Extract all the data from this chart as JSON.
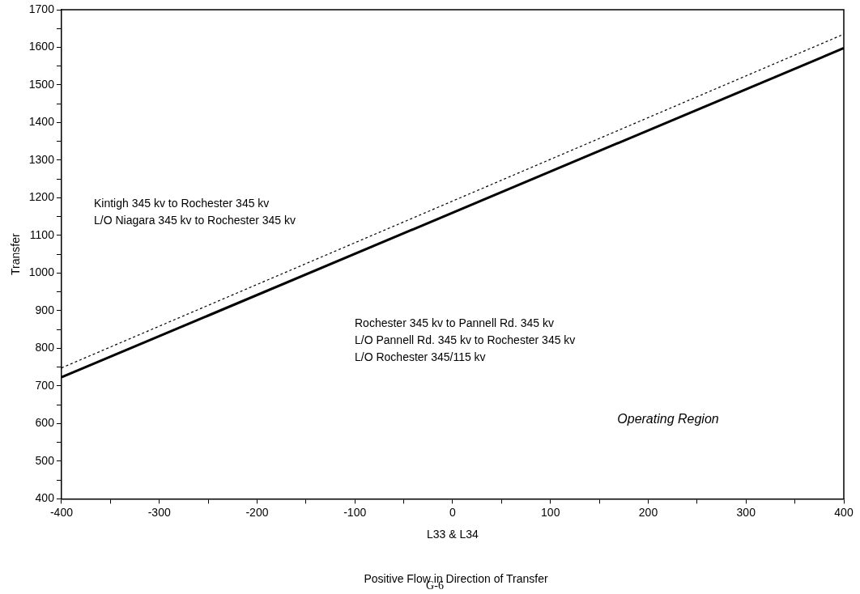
{
  "chart_data": {
    "type": "line",
    "xlabel": "L33 & L34",
    "ylabel": "Transfer",
    "x": [
      -400,
      400
    ],
    "series": [
      {
        "color": "#000000",
        "values": [
          723,
          1598
        ],
        "line_style": "solid"
      },
      {
        "color": "#000000",
        "values": [
          748,
          1635
        ],
        "line_style": "dashed"
      }
    ],
    "xlim": [
      -400,
      400
    ],
    "xticks": [
      -400,
      {
        "value": -350,
        "label": null
      },
      -300,
      {
        "value": -250,
        "label": null
      },
      -200,
      {
        "value": -150,
        "label": null
      },
      -100,
      {
        "value": -50,
        "label": null
      },
      0,
      {
        "value": 50,
        "label": null
      },
      100,
      {
        "value": 150,
        "label": null
      },
      200,
      {
        "value": 250,
        "label": null
      },
      300,
      {
        "value": 350,
        "label": null
      },
      400
    ],
    "ylim": [
      400,
      1700
    ],
    "yticks": [
      400,
      {
        "value": 450,
        "label": null
      },
      500,
      {
        "value": 550,
        "label": null
      },
      600,
      {
        "value": 650,
        "label": null
      },
      700,
      {
        "value": 750,
        "label": null
      },
      800,
      {
        "value": 850,
        "label": null
      },
      900,
      {
        "value": 950,
        "label": null
      },
      1000,
      {
        "value": 1050,
        "label": null
      },
      1100,
      {
        "value": 1150,
        "label": null
      },
      1200,
      {
        "value": 1250,
        "label": null
      },
      1300,
      {
        "value": 1350,
        "label": null
      },
      1400,
      {
        "value": 1450,
        "label": null
      },
      1500,
      {
        "value": 1550,
        "label": null
      },
      1600,
      {
        "value": 1650,
        "label": null
      },
      1700
    ],
    "grid": false,
    "legend": false,
    "marker": "none",
    "annotations": [
      "Kintigh 345 kv to Rochester 345 kv",
      "L/O Niagara 345 kv to Rochester 345 kv",
      "Rochester 345 kv to Pannell Rd. 345 kv",
      "L/O Pannell Rd. 345 kv to Rochester 345 kv",
      "L/O Rochester 345/115 kv",
      "Operating Region",
      "Positive Flow in Direction of Transfer",
      "G-6"
    ]
  }
}
